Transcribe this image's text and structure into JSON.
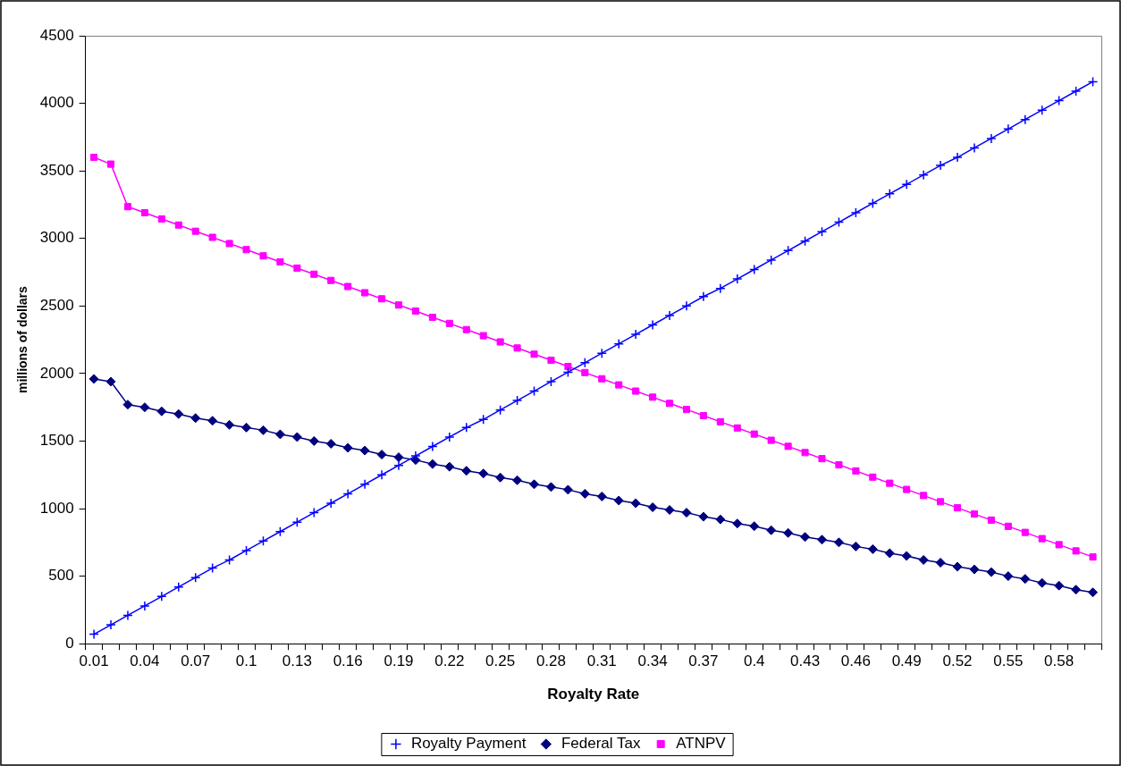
{
  "chart_data": {
    "type": "line",
    "xlabel": "Royalty Rate",
    "ylabel": "millions of dollars",
    "categories": [
      "0.01",
      null,
      null,
      "0.04",
      null,
      null,
      "0.07",
      null,
      null,
      "0.1",
      null,
      null,
      "0.13",
      null,
      null,
      "0.16",
      null,
      null,
      "0.19",
      null,
      null,
      "0.22",
      null,
      null,
      "0.25",
      null,
      null,
      "0.28",
      null,
      null,
      "0.31",
      null,
      null,
      "0.34",
      null,
      null,
      "0.37",
      null,
      null,
      "0.4",
      null,
      null,
      "0.43",
      null,
      null,
      "0.46",
      null,
      null,
      "0.49",
      null,
      null,
      "0.52",
      null,
      null,
      "0.55",
      null,
      null,
      "0.58",
      null,
      null
    ],
    "series": [
      {
        "name": "Royalty Payment",
        "color": "#0000ff",
        "marker": "cross",
        "values": [
          70,
          140,
          210,
          280,
          350,
          420,
          490,
          560,
          620,
          690,
          760,
          830,
          900,
          970,
          1040,
          1110,
          1180,
          1250,
          1320,
          1390,
          1460,
          1530,
          1600,
          1660,
          1730,
          1800,
          1870,
          1940,
          2010,
          2080,
          2150,
          2220,
          2290,
          2360,
          2430,
          2500,
          2570,
          2630,
          2700,
          2770,
          2840,
          2910,
          2980,
          3050,
          3120,
          3190,
          3260,
          3330,
          3400,
          3470,
          3540,
          3600,
          3670,
          3740,
          3810,
          3880,
          3950,
          4020,
          4090,
          4160
        ]
      },
      {
        "name": "Federal Tax",
        "color": "#000080",
        "marker": "diamond",
        "values": [
          1960,
          1940,
          1770,
          1750,
          1720,
          1700,
          1670,
          1650,
          1620,
          1600,
          1580,
          1550,
          1530,
          1500,
          1480,
          1450,
          1430,
          1400,
          1380,
          1360,
          1330,
          1310,
          1280,
          1260,
          1230,
          1210,
          1180,
          1160,
          1140,
          1110,
          1090,
          1060,
          1040,
          1010,
          990,
          970,
          940,
          920,
          890,
          870,
          840,
          820,
          790,
          770,
          750,
          720,
          700,
          670,
          650,
          620,
          600,
          570,
          550,
          530,
          500,
          480,
          450,
          430,
          400,
          380
        ]
      },
      {
        "name": "ATNPV",
        "color": "#ff00ff",
        "marker": "square",
        "values": [
          3600,
          3550,
          3235,
          3190,
          3144,
          3099,
          3053,
          3008,
          2962,
          2917,
          2871,
          2826,
          2780,
          2735,
          2689,
          2644,
          2598,
          2553,
          2507,
          2462,
          2416,
          2371,
          2325,
          2280,
          2234,
          2189,
          2143,
          2098,
          2052,
          2007,
          1961,
          1916,
          1870,
          1825,
          1779,
          1734,
          1688,
          1643,
          1597,
          1552,
          1506,
          1461,
          1415,
          1370,
          1324,
          1279,
          1233,
          1188,
          1142,
          1097,
          1051,
          1006,
          960,
          915,
          869,
          824,
          778,
          733,
          687,
          642
        ]
      }
    ],
    "ylim": [
      0,
      4500
    ],
    "yticks": [
      0,
      500,
      1000,
      1500,
      2000,
      2500,
      3000,
      3500,
      4000,
      4500
    ],
    "grid": false,
    "legend": "bottom",
    "line_style": "solid"
  }
}
